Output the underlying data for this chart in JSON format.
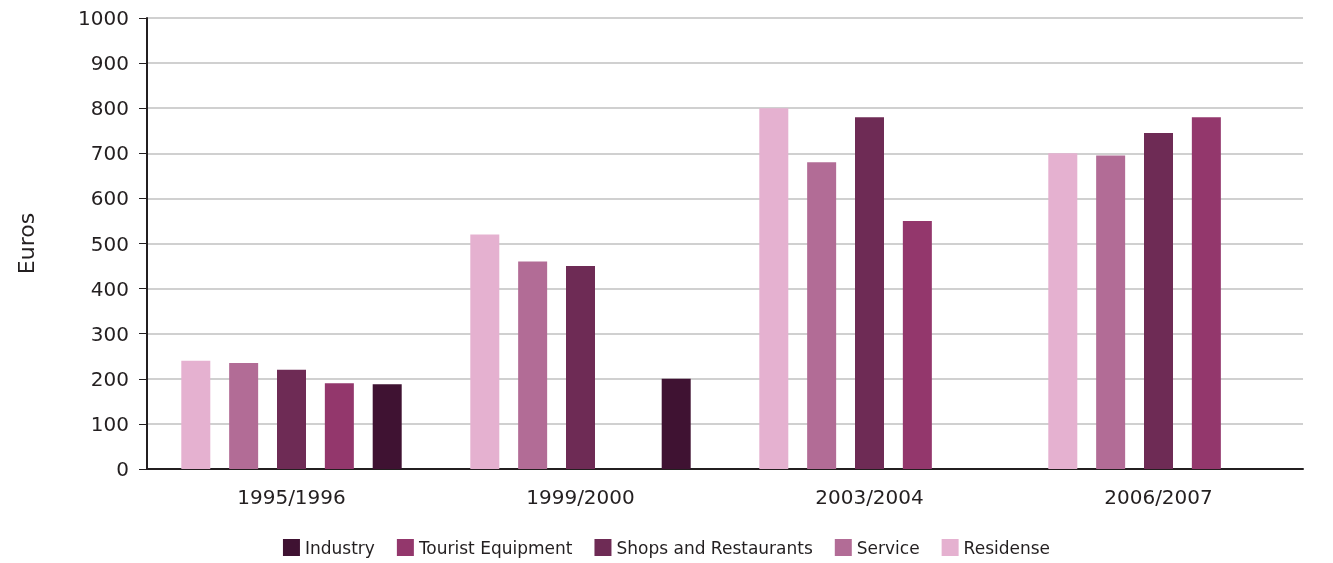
{
  "chart_data": {
    "type": "bar",
    "ylabel": "Euros",
    "categories": [
      "1995/1996",
      "1999/2000",
      "2003/2004",
      "2006/2007"
    ],
    "series": [
      {
        "name": "Residense",
        "color": "#e5b1d0",
        "values": [
          240,
          520,
          800,
          700
        ]
      },
      {
        "name": "Service",
        "color": "#b26c96",
        "values": [
          235,
          460,
          680,
          695
        ]
      },
      {
        "name": "Shops and Restaurants",
        "color": "#6e2b55",
        "values": [
          220,
          450,
          780,
          745
        ]
      },
      {
        "name": "Tourist Equipment",
        "color": "#93376c",
        "values": [
          190,
          null,
          550,
          780
        ]
      },
      {
        "name": "Industry",
        "color": "#3f1232",
        "values": [
          188,
          200,
          null,
          null
        ]
      }
    ],
    "ylim": [
      0,
      1000
    ],
    "yticks": [
      0,
      100,
      200,
      300,
      400,
      500,
      600,
      700,
      800,
      900,
      1000
    ],
    "grid": "y",
    "legend": "bottom"
  }
}
